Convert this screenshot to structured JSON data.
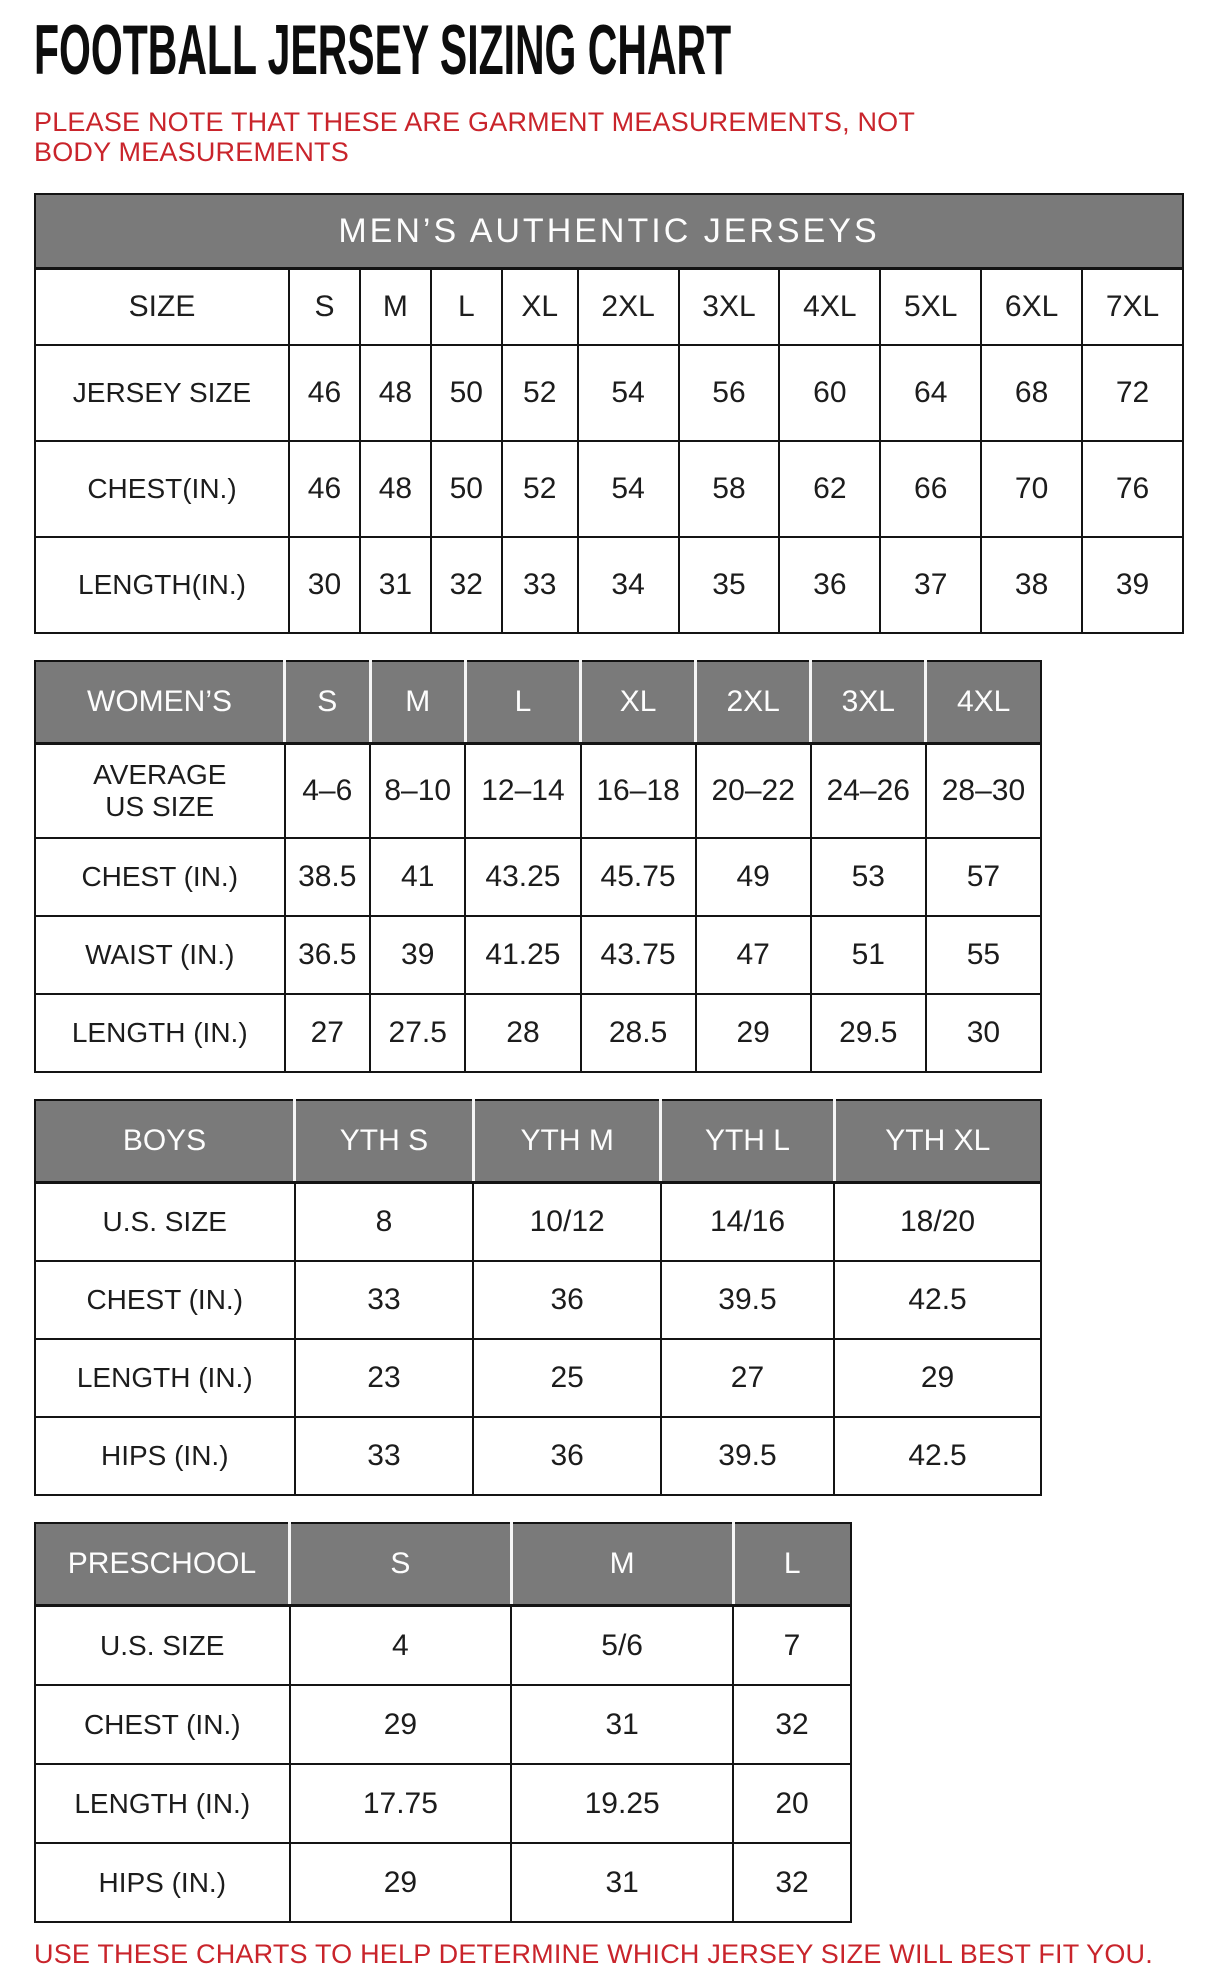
{
  "title": "FOOTBALL JERSEY SIZING CHART",
  "note": "PLEASE NOTE THAT THESE ARE GARMENT MEASUREMENTS, NOT BODY MEASUREMENTS",
  "footer": "USE THESE CHARTS TO HELP DETERMINE WHICH JERSEY SIZE WILL BEST FIT YOU.",
  "colors": {
    "accent_red": "#C9242B",
    "header_gray": "#7A7A7A",
    "border_black": "#141414"
  },
  "tables": [
    {
      "id": "mens",
      "merged_title": "MEN’S AUTHENTIC JERSEYS",
      "columns": [
        "SIZE",
        "S",
        "M",
        "L",
        "XL",
        "2XL",
        "3XL",
        "4XL",
        "5XL",
        "6XL",
        "7XL"
      ],
      "rows": [
        [
          "JERSEY SIZE",
          "46",
          "48",
          "50",
          "52",
          "54",
          "56",
          "60",
          "64",
          "68",
          "72"
        ],
        [
          "CHEST(IN.)",
          "46",
          "48",
          "50",
          "52",
          "54",
          "58",
          "62",
          "66",
          "70",
          "76"
        ],
        [
          "LENGTH(IN.)",
          "30",
          "31",
          "32",
          "33",
          "34",
          "35",
          "36",
          "37",
          "38",
          "39"
        ]
      ]
    },
    {
      "id": "womens",
      "columns": [
        "WOMEN’S",
        "S",
        "M",
        "L",
        "XL",
        "2XL",
        "3XL",
        "4XL"
      ],
      "rows": [
        [
          "AVERAGE US SIZE",
          "4–6",
          "8–10",
          "12–14",
          "16–18",
          "20–22",
          "24–26",
          "28–30"
        ],
        [
          "CHEST (IN.)",
          "38.5",
          "41",
          "43.25",
          "45.75",
          "49",
          "53",
          "57"
        ],
        [
          "WAIST (IN.)",
          "36.5",
          "39",
          "41.25",
          "43.75",
          "47",
          "51",
          "55"
        ],
        [
          "LENGTH (IN.)",
          "27",
          "27.5",
          "28",
          "28.5",
          "29",
          "29.5",
          "30"
        ]
      ]
    },
    {
      "id": "boys",
      "columns": [
        "BOYS",
        "YTH S",
        "YTH M",
        "YTH L",
        "YTH XL"
      ],
      "rows": [
        [
          "U.S. SIZE",
          "8",
          "10/12",
          "14/16",
          "18/20"
        ],
        [
          "CHEST (IN.)",
          "33",
          "36",
          "39.5",
          "42.5"
        ],
        [
          "LENGTH (IN.)",
          "23",
          "25",
          "27",
          "29"
        ],
        [
          "HIPS (IN.)",
          "33",
          "36",
          "39.5",
          "42.5"
        ]
      ]
    },
    {
      "id": "preschool",
      "columns": [
        "PRESCHOOL",
        "S",
        "M",
        "L"
      ],
      "rows": [
        [
          "U.S. SIZE",
          "4",
          "5/6",
          "7"
        ],
        [
          "CHEST (IN.)",
          "29",
          "31",
          "32"
        ],
        [
          "LENGTH (IN.)",
          "17.75",
          "19.25",
          "20"
        ],
        [
          "HIPS (IN.)",
          "29",
          "31",
          "32"
        ]
      ]
    }
  ]
}
